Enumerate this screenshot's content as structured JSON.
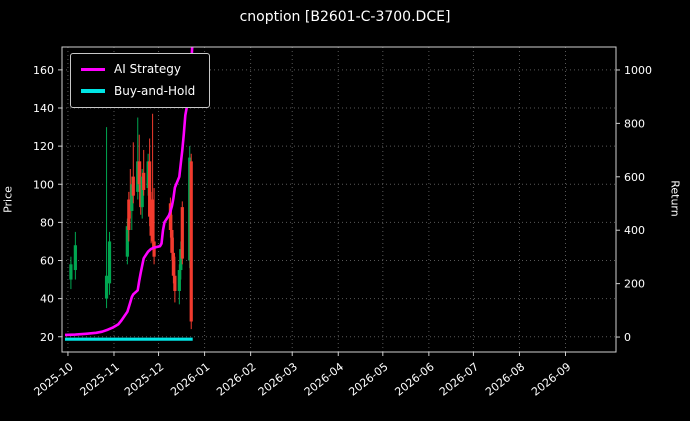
{
  "chart_data": {
    "type": "candlestick+line",
    "title": "cnoption [B2601-C-3700.DCE]",
    "grid": "dotted",
    "background": "#000000",
    "left_axis": {
      "label": "Price",
      "ticks": [
        20,
        40,
        60,
        80,
        100,
        120,
        140,
        160
      ],
      "lim": [
        12,
        172
      ]
    },
    "right_axis": {
      "label": "Return",
      "ticks": [
        0,
        200,
        400,
        600,
        800,
        1000
      ],
      "lim": [
        -56,
        1086
      ]
    },
    "x_axis": {
      "tick_labels": [
        "2025-10",
        "2025-11",
        "2025-12",
        "2026-01",
        "2026-02",
        "2026-03",
        "2026-04",
        "2026-05",
        "2026-06",
        "2026-07",
        "2026-08",
        "2026-09"
      ],
      "lim": [
        "2025-09-27",
        "2026-10-05"
      ]
    },
    "legend": {
      "position": "upper-left",
      "entries": [
        {
          "label": "AI Strategy",
          "color": "#ff00ff"
        },
        {
          "label": "Buy-and-Hold",
          "color": "#00e5e5"
        }
      ]
    },
    "candle_colors": {
      "up": "#00a651",
      "down": "#f23b2e"
    },
    "candles": [
      [
        "2025-10-03",
        50,
        62,
        45,
        58
      ],
      [
        "2025-10-06",
        55,
        75,
        50,
        68
      ],
      [
        "2025-10-27",
        40,
        130,
        35,
        52
      ],
      [
        "2025-10-29",
        48,
        75,
        42,
        70
      ],
      [
        "2025-11-10",
        62,
        82,
        58,
        78
      ],
      [
        "2025-11-11",
        92,
        96,
        70,
        76
      ],
      [
        "2025-11-12",
        90,
        108,
        82,
        86
      ],
      [
        "2025-11-13",
        86,
        104,
        76,
        100
      ],
      [
        "2025-11-14",
        104,
        122,
        90,
        94
      ],
      [
        "2025-11-17",
        96,
        135,
        92,
        112
      ],
      [
        "2025-11-18",
        112,
        126,
        96,
        100
      ],
      [
        "2025-11-19",
        100,
        112,
        84,
        88
      ],
      [
        "2025-11-20",
        88,
        108,
        82,
        104
      ],
      [
        "2025-11-21",
        106,
        118,
        94,
        97
      ],
      [
        "2025-11-24",
        98,
        116,
        94,
        112
      ],
      [
        "2025-11-25",
        112,
        124,
        78,
        83
      ],
      [
        "2025-11-26",
        84,
        96,
        69,
        73
      ],
      [
        "2025-11-27",
        92,
        137,
        66,
        70
      ],
      [
        "2025-11-28",
        70,
        98,
        58,
        62
      ],
      [
        "2025-12-09",
        90,
        93,
        72,
        76
      ],
      [
        "2025-12-10",
        76,
        84,
        60,
        64
      ],
      [
        "2025-12-11",
        64,
        72,
        48,
        52
      ],
      [
        "2025-12-12",
        52,
        62,
        38,
        44
      ],
      [
        "2025-12-15",
        44,
        58,
        37,
        55
      ],
      [
        "2025-12-16",
        55,
        70,
        50,
        66
      ],
      [
        "2025-12-17",
        88,
        91,
        58,
        61
      ],
      [
        "2025-12-22",
        60,
        120,
        56,
        114
      ],
      [
        "2025-12-23",
        112,
        116,
        24,
        28
      ]
    ],
    "series": [
      {
        "name": "AI Strategy",
        "axis": "return",
        "color": "#ff00ff",
        "points": [
          [
            "2025-09-29",
            8
          ],
          [
            "2025-10-06",
            9
          ],
          [
            "2025-10-13",
            12
          ],
          [
            "2025-10-20",
            16
          ],
          [
            "2025-10-24",
            20
          ],
          [
            "2025-10-28",
            28
          ],
          [
            "2025-10-31",
            35
          ],
          [
            "2025-11-04",
            48
          ],
          [
            "2025-11-06",
            62
          ],
          [
            "2025-11-10",
            95
          ],
          [
            "2025-11-12",
            130
          ],
          [
            "2025-11-13",
            150
          ],
          [
            "2025-11-14",
            160
          ],
          [
            "2025-11-17",
            175
          ],
          [
            "2025-11-18",
            210
          ],
          [
            "2025-11-19",
            240
          ],
          [
            "2025-11-20",
            268
          ],
          [
            "2025-11-21",
            295
          ],
          [
            "2025-11-24",
            320
          ],
          [
            "2025-11-26",
            330
          ],
          [
            "2025-11-28",
            335
          ],
          [
            "2025-12-02",
            340
          ],
          [
            "2025-12-03",
            350
          ],
          [
            "2025-12-04",
            400
          ],
          [
            "2025-12-05",
            430
          ],
          [
            "2025-12-08",
            455
          ],
          [
            "2025-12-09",
            470
          ],
          [
            "2025-12-10",
            490
          ],
          [
            "2025-12-11",
            520
          ],
          [
            "2025-12-12",
            560
          ],
          [
            "2025-12-15",
            600
          ],
          [
            "2025-12-16",
            650
          ],
          [
            "2025-12-17",
            700
          ],
          [
            "2025-12-18",
            760
          ],
          [
            "2025-12-19",
            830
          ],
          [
            "2025-12-22",
            920
          ],
          [
            "2025-12-23",
            1020
          ],
          [
            "2025-12-24",
            1120
          ]
        ]
      },
      {
        "name": "Buy-and-Hold",
        "axis": "return",
        "color": "#00e5e5",
        "points": [
          [
            "2025-09-29",
            -8
          ],
          [
            "2025-12-24",
            -8
          ]
        ]
      }
    ]
  }
}
